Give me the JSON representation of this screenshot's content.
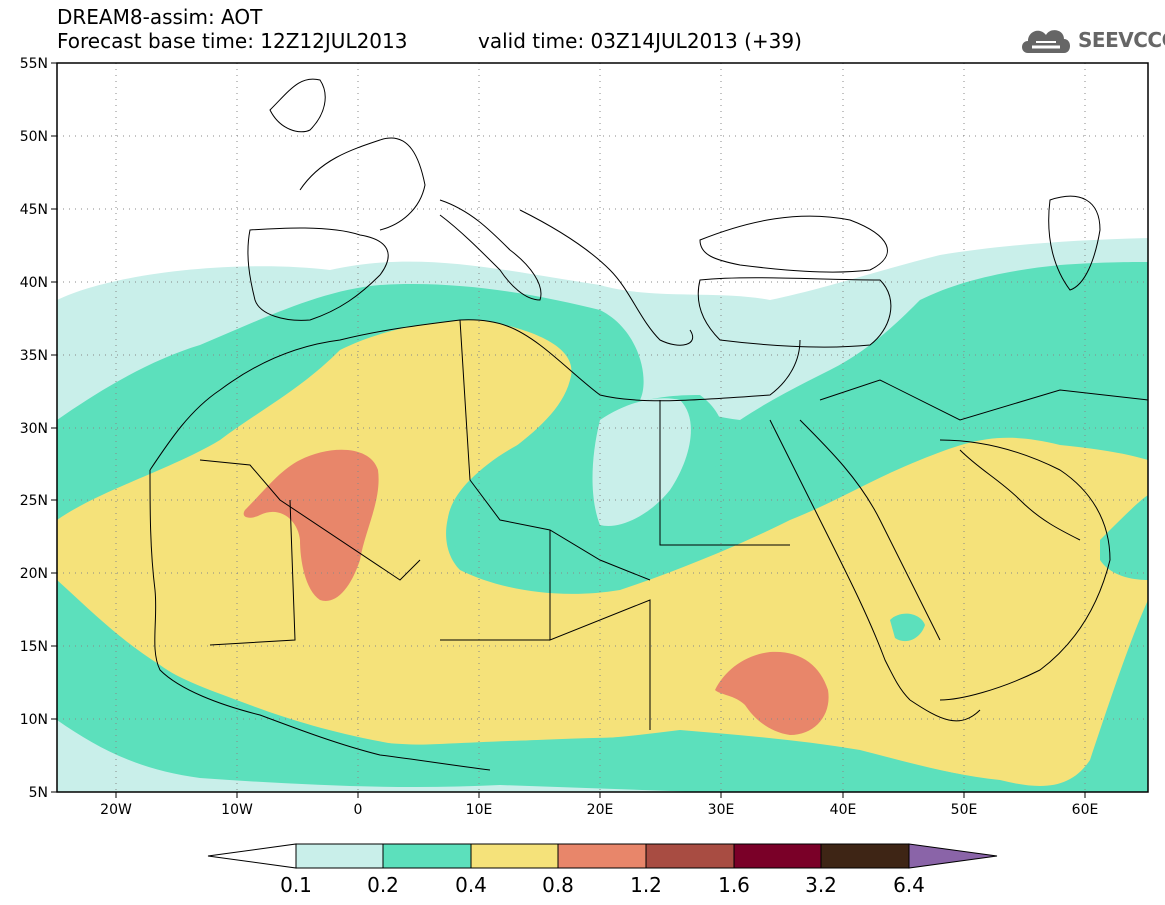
{
  "header": {
    "title": "DREAM8-assim: AOT",
    "base_time": "Forecast base time: 12Z12JUL2013",
    "valid_time": "valid time: 03Z14JUL2013 (+39)"
  },
  "logo": {
    "text": "SEEVCCC",
    "icon": "cloud-icon"
  },
  "map": {
    "lat_labels": [
      "55N",
      "50N",
      "45N",
      "40N",
      "35N",
      "30N",
      "25N",
      "20N",
      "15N",
      "10N",
      "5N"
    ],
    "lon_labels": [
      "20W",
      "10W",
      "0",
      "10E",
      "20E",
      "30E",
      "40E",
      "50E",
      "60E"
    ],
    "lat_range": [
      5,
      55
    ],
    "lon_range": [
      -25,
      65
    ],
    "grid": true
  },
  "colorbar": {
    "labels": [
      "0.1",
      "0.2",
      "0.4",
      "0.8",
      "1.2",
      "1.6",
      "3.2",
      "6.4"
    ],
    "colors": [
      "#ffffff",
      "#c9efea",
      "#5ce0bc",
      "#f5e27a",
      "#e8866a",
      "#a84c42",
      "#7a0028",
      "#3e2515",
      "#8a64a8"
    ]
  }
}
